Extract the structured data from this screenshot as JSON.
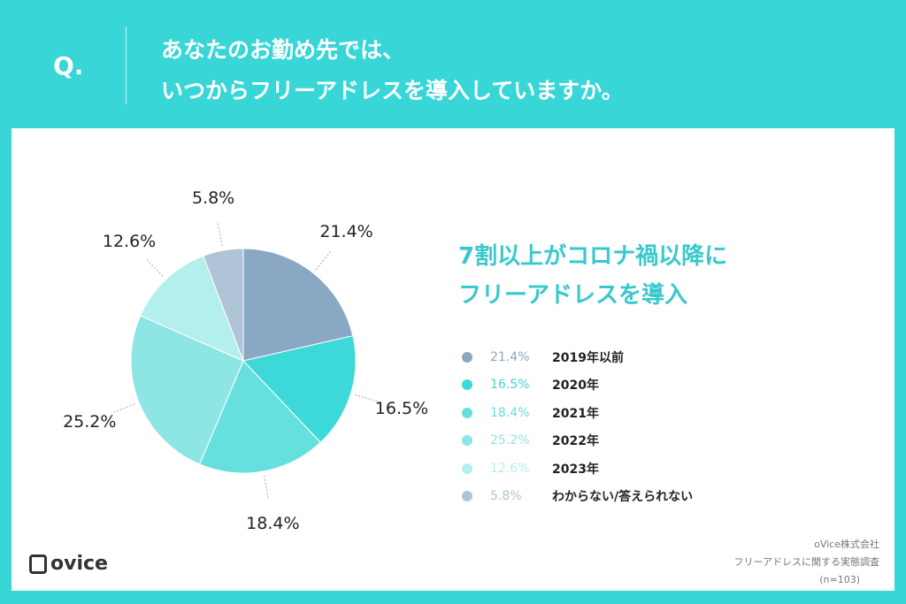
{
  "header": {
    "q": "Q.",
    "title_line1": "あなたのお勤め先では、",
    "title_line2": "いつからフリーアドレスを導入していますか。"
  },
  "headline": {
    "line1": "7割以上がコロナ禍以降に",
    "line2": "フリーアドレスを導入"
  },
  "chart_data": {
    "type": "pie",
    "title": "あなたのお勤め先では、いつからフリーアドレスを導入していますか。",
    "categories": [
      "2019年以前",
      "2020年",
      "2021年",
      "2022年",
      "2023年",
      "わからない/答えられない"
    ],
    "values": [
      21.4,
      16.5,
      18.4,
      25.2,
      12.6,
      5.8
    ],
    "labels": [
      "21.4%",
      "16.5%",
      "18.4%",
      "25.2%",
      "12.6%",
      "5.8%"
    ],
    "colors": [
      "#8aa8c4",
      "#3dd8d8",
      "#66e0de",
      "#8de6e4",
      "#b3efec",
      "#b0c4d8"
    ],
    "legend_position": "right",
    "start": "top, clockwise"
  },
  "footer": {
    "logo": "ovice",
    "source_line1": "oVice株式会社",
    "source_line2": "フリーアドレスに関する実態調査",
    "source_line3": "(n=103)"
  }
}
